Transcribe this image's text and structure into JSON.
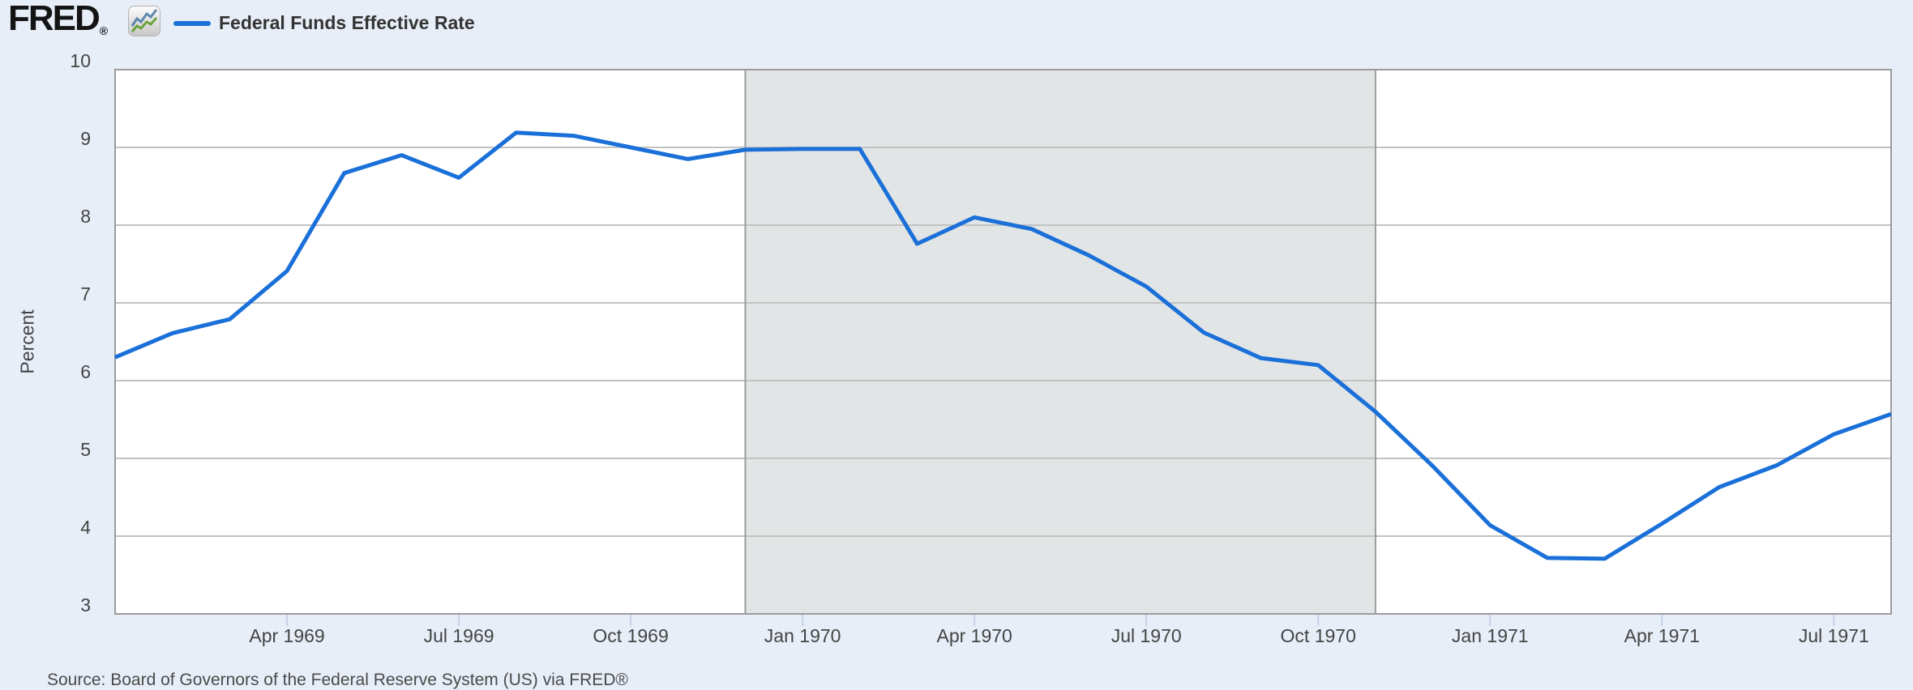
{
  "header": {
    "logo_text": "FRED",
    "logo_registered_mark": "®",
    "legend": {
      "label": "Federal Funds Effective Rate"
    }
  },
  "footer": {
    "source_text": "Source: Board of Governors of the Federal Reserve System (US)  via FRED®"
  },
  "chart_data": {
    "type": "line",
    "title": "Federal Funds Effective Rate",
    "ylabel": "Percent",
    "ylim": [
      3,
      10
    ],
    "yticks": [
      3,
      4,
      5,
      6,
      7,
      8,
      9,
      10
    ],
    "grid": true,
    "legend_position": "top-left",
    "x": [
      "1969-01",
      "1969-02",
      "1969-03",
      "1969-04",
      "1969-05",
      "1969-06",
      "1969-07",
      "1969-08",
      "1969-09",
      "1969-10",
      "1969-11",
      "1969-12",
      "1970-01",
      "1970-02",
      "1970-03",
      "1970-04",
      "1970-05",
      "1970-06",
      "1970-07",
      "1970-08",
      "1970-09",
      "1970-10",
      "1970-11",
      "1970-12",
      "1971-01",
      "1971-02",
      "1971-03",
      "1971-04",
      "1971-05",
      "1971-06",
      "1971-07",
      "1971-08"
    ],
    "values": [
      6.3,
      6.61,
      6.79,
      7.41,
      8.67,
      8.9,
      8.61,
      9.19,
      9.15,
      9.0,
      8.85,
      8.97,
      8.98,
      8.98,
      7.76,
      8.1,
      7.95,
      7.61,
      7.21,
      6.62,
      6.29,
      6.2,
      5.6,
      4.9,
      4.14,
      3.72,
      3.71,
      4.16,
      4.63,
      4.91,
      5.31,
      5.57
    ],
    "xtick_labels": [
      {
        "index": 3,
        "label": "Apr 1969"
      },
      {
        "index": 6,
        "label": "Jul 1969"
      },
      {
        "index": 9,
        "label": "Oct 1969"
      },
      {
        "index": 12,
        "label": "Jan 1970"
      },
      {
        "index": 15,
        "label": "Apr 1970"
      },
      {
        "index": 18,
        "label": "Jul 1970"
      },
      {
        "index": 21,
        "label": "Oct 1970"
      },
      {
        "index": 24,
        "label": "Jan 1971"
      },
      {
        "index": 27,
        "label": "Apr 1971"
      },
      {
        "index": 30,
        "label": "Jul 1971"
      }
    ],
    "recession_band": {
      "start_index": 11,
      "end_index": 22
    },
    "colors": {
      "line": "#1a70d8",
      "band": "#e2e5e6",
      "band_edge": "#9c9c9c",
      "grid": "#c2c2c2",
      "border": "#9b9b9b",
      "tick": "#c6d2e6",
      "plot_bg": "#ffffff",
      "page_bg": "#e8eef8",
      "axis_text": "#444444"
    }
  }
}
